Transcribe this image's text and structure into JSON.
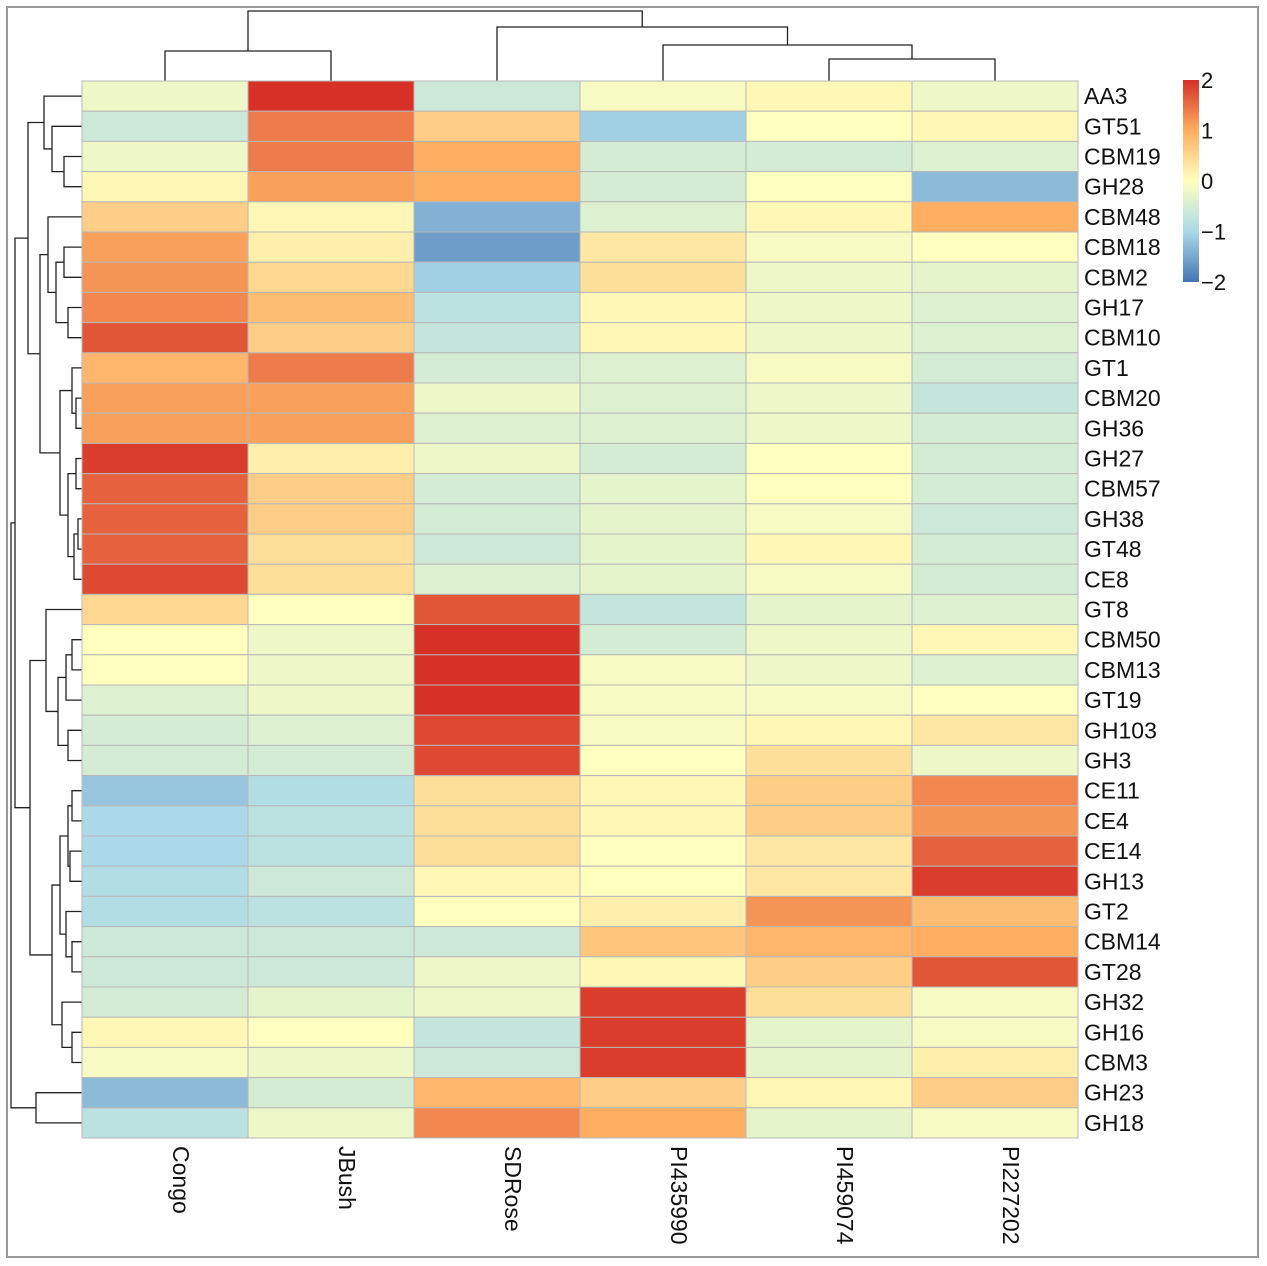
{
  "chart_data": {
    "type": "heatmap",
    "title": "",
    "columns": [
      "Congo",
      "JBush",
      "SDRose",
      "PI435990",
      "PI459074",
      "PI227202"
    ],
    "column_labels_display": [
      "Congo",
      "JBush",
      "SDRose",
      "PI435990",
      "PI459074",
      "PI227202"
    ],
    "rows": [
      "AA3",
      "GT51",
      "CBM19",
      "GH28",
      "CBM48",
      "CBM18",
      "CBM2",
      "GH17",
      "CBM10",
      "GT1",
      "CBM20",
      "GH36",
      "GH27",
      "CBM57",
      "GH38",
      "GT48",
      "CE8",
      "GT8",
      "CBM50",
      "CBM13",
      "GT19",
      "GH103",
      "GH3",
      "CE11",
      "CE4",
      "CE14",
      "GH13",
      "GT2",
      "CBM14",
      "GT28",
      "GH32",
      "GH16",
      "CBM3",
      "GH23",
      "GH18"
    ],
    "values": [
      [
        -0.2,
        2.0,
        -0.6,
        -0.1,
        0.1,
        -0.2
      ],
      [
        -0.6,
        1.4,
        0.6,
        -1.1,
        0.0,
        0.1
      ],
      [
        -0.2,
        1.4,
        1.0,
        -0.5,
        -0.5,
        -0.4
      ],
      [
        0.1,
        1.1,
        1.0,
        -0.5,
        0.0,
        -1.3
      ],
      [
        0.6,
        0.1,
        -1.4,
        -0.4,
        0.1,
        1.0
      ],
      [
        1.1,
        0.2,
        -1.6,
        0.3,
        -0.1,
        0.0
      ],
      [
        1.2,
        0.5,
        -1.1,
        0.4,
        -0.2,
        -0.3
      ],
      [
        1.3,
        0.8,
        -0.8,
        0.1,
        -0.2,
        -0.4
      ],
      [
        1.7,
        0.6,
        -0.7,
        0.1,
        -0.2,
        -0.4
      ],
      [
        0.9,
        1.4,
        -0.5,
        -0.4,
        -0.1,
        -0.5
      ],
      [
        1.1,
        1.1,
        -0.2,
        -0.4,
        -0.2,
        -0.7
      ],
      [
        1.1,
        1.1,
        -0.4,
        -0.4,
        -0.2,
        -0.5
      ],
      [
        1.9,
        0.2,
        -0.2,
        -0.5,
        0.0,
        -0.5
      ],
      [
        1.6,
        0.6,
        -0.5,
        -0.3,
        0.0,
        -0.5
      ],
      [
        1.6,
        0.6,
        -0.5,
        -0.3,
        -0.1,
        -0.6
      ],
      [
        1.6,
        0.4,
        -0.6,
        -0.3,
        0.1,
        -0.5
      ],
      [
        1.8,
        0.4,
        -0.4,
        -0.3,
        -0.1,
        -0.5
      ],
      [
        0.5,
        0.0,
        1.7,
        -0.7,
        -0.3,
        -0.4
      ],
      [
        0.0,
        -0.2,
        2.0,
        -0.5,
        -0.2,
        0.1
      ],
      [
        0.0,
        -0.2,
        2.0,
        -0.1,
        -0.2,
        -0.4
      ],
      [
        -0.4,
        -0.2,
        2.0,
        -0.1,
        -0.1,
        0.0
      ],
      [
        -0.5,
        -0.4,
        1.8,
        -0.1,
        0.1,
        0.3
      ],
      [
        -0.5,
        -0.5,
        1.8,
        0.0,
        0.4,
        -0.2
      ],
      [
        -1.2,
        -0.9,
        0.4,
        0.1,
        0.6,
        1.3
      ],
      [
        -1.0,
        -0.8,
        0.4,
        0.1,
        0.6,
        1.2
      ],
      [
        -1.0,
        -0.8,
        0.4,
        0.0,
        0.3,
        1.6
      ],
      [
        -0.9,
        -0.6,
        0.1,
        0.0,
        0.3,
        1.9
      ],
      [
        -0.9,
        -0.8,
        0.0,
        0.2,
        1.2,
        0.8
      ],
      [
        -0.6,
        -0.6,
        -0.6,
        0.7,
        0.9,
        1.0
      ],
      [
        -0.6,
        -0.6,
        -0.2,
        0.1,
        0.6,
        1.7
      ],
      [
        -0.5,
        -0.3,
        -0.2,
        1.9,
        0.4,
        -0.1
      ],
      [
        0.1,
        0.0,
        -0.7,
        1.9,
        -0.3,
        -0.1
      ],
      [
        -0.1,
        -0.2,
        -0.6,
        1.9,
        -0.3,
        0.2
      ],
      [
        -1.3,
        -0.5,
        0.9,
        0.6,
        0.1,
        0.6
      ],
      [
        -0.8,
        -0.2,
        1.3,
        1.0,
        -0.3,
        -0.1
      ]
    ],
    "colorbar": {
      "min": -2,
      "max": 2,
      "ticks": [
        "2",
        "1",
        "0",
        "−1",
        "−2"
      ],
      "tick_values": [
        2,
        1,
        0,
        -1,
        -2
      ]
    },
    "colors": {
      "low": "#4575b4",
      "mid_low": "#abd9e9",
      "mid": "#ffffbf",
      "mid_high": "#fdae61",
      "high": "#d73027",
      "grid": "#b8b8b8",
      "tree": "#222222"
    },
    "dendrogram_columns": true,
    "dendrogram_rows": true
  }
}
